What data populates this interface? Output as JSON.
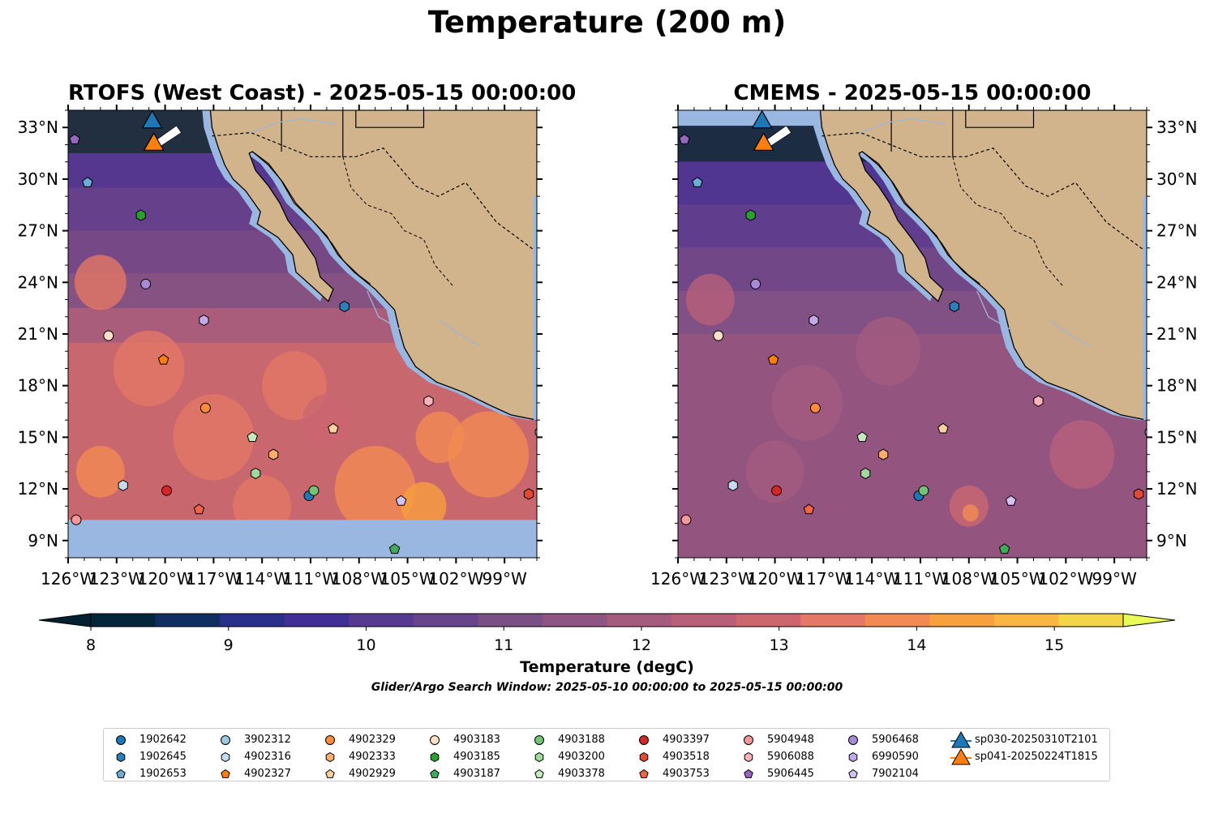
{
  "figure": {
    "title": "Temperature (200 m)",
    "colorbar_label": "Temperature (degC)",
    "search_window": "Glider/Argo Search Window: 2025-05-10 00:00:00 to 2025-05-15 00:00:00"
  },
  "panels": [
    {
      "title": "RTOFS (West Coast) - 2025-05-15 00:00:00"
    },
    {
      "title": "CMEMS - 2025-05-15 00:00:00"
    }
  ],
  "axes": {
    "lon_range": [
      -126,
      -97
    ],
    "lat_range": [
      8,
      34
    ],
    "lon_ticks": [
      "126°W",
      "123°W",
      "120°W",
      "117°W",
      "114°W",
      "111°W",
      "108°W",
      "105°W",
      "102°W",
      "99°W"
    ],
    "lat_ticks": [
      "33°N",
      "30°N",
      "27°N",
      "24°N",
      "21°N",
      "18°N",
      "15°N",
      "12°N",
      "9°N"
    ]
  },
  "colorbar": {
    "min": 8,
    "max": 15.5,
    "step": 0.5,
    "tick_labels": [
      "8",
      "9",
      "10",
      "11",
      "12",
      "13",
      "14",
      "15"
    ],
    "colors": [
      "#03263a",
      "#0f2f64",
      "#28308a",
      "#412f95",
      "#553a90",
      "#67448b",
      "#7a4f86",
      "#8f5481",
      "#a55b7e",
      "#b86079",
      "#cc6770",
      "#e47765",
      "#f28b53",
      "#f89f3f",
      "#f9b742",
      "#f3d548"
    ],
    "under_color": "#02202f",
    "over_color": "#e8fb58"
  },
  "map_colors": {
    "land": "#d2b48c",
    "no_data": "#99b7e1",
    "rtofs_base": "#c9676f",
    "cmems_base": "#a55a7c"
  },
  "floats": [
    {
      "id": "1902642",
      "shape": "circle",
      "color": "#1f77b4",
      "lon": -111.1,
      "lat": 11.6
    },
    {
      "id": "1902645",
      "shape": "hexagon",
      "color": "#2c7fb8",
      "lon": -108.9,
      "lat": 22.6
    },
    {
      "id": "1902653",
      "shape": "pentagon",
      "color": "#6baed6",
      "lon": -124.8,
      "lat": 29.8
    },
    {
      "id": "3902312",
      "shape": "circle",
      "color": "#9ecae1",
      "lon": -96.8,
      "lat": 15.3
    },
    {
      "id": "4902316",
      "shape": "hexagon",
      "color": "#c6dbef",
      "lon": -122.6,
      "lat": 12.2
    },
    {
      "id": "4902327",
      "shape": "pentagon",
      "color": "#ff7f0e",
      "lon": -120.1,
      "lat": 19.5
    },
    {
      "id": "4902329",
      "shape": "circle",
      "color": "#fd8d3c",
      "lon": -117.5,
      "lat": 16.7
    },
    {
      "id": "4902333",
      "shape": "hexagon",
      "color": "#fdae6b",
      "lon": -113.3,
      "lat": 14.0
    },
    {
      "id": "4902929",
      "shape": "pentagon",
      "color": "#fdd0a2",
      "lon": -109.6,
      "lat": 15.5
    },
    {
      "id": "4903183",
      "shape": "circle",
      "color": "#fee0c8",
      "lon": -123.5,
      "lat": 20.9
    },
    {
      "id": "4903185",
      "shape": "hexagon",
      "color": "#2ca02c",
      "lon": -121.5,
      "lat": 27.9
    },
    {
      "id": "4903187",
      "shape": "pentagon",
      "color": "#41ab5d",
      "lon": -105.8,
      "lat": 8.5
    },
    {
      "id": "4903188",
      "shape": "circle",
      "color": "#74c476",
      "lon": -110.8,
      "lat": 11.9
    },
    {
      "id": "4903200",
      "shape": "hexagon",
      "color": "#a1d99b",
      "lon": -114.4,
      "lat": 12.9
    },
    {
      "id": "4903378",
      "shape": "pentagon",
      "color": "#c7e9c0",
      "lon": -114.6,
      "lat": 15.0
    },
    {
      "id": "4903397",
      "shape": "circle",
      "color": "#d62728",
      "lon": -119.9,
      "lat": 11.9
    },
    {
      "id": "4903518",
      "shape": "hexagon",
      "color": "#e34a33",
      "lon": -97.5,
      "lat": 11.7
    },
    {
      "id": "4903753",
      "shape": "pentagon",
      "color": "#ef6548",
      "lon": -117.9,
      "lat": 10.8
    },
    {
      "id": "5904948",
      "shape": "circle",
      "color": "#f4989a",
      "lon": -125.5,
      "lat": 10.2
    },
    {
      "id": "5906088",
      "shape": "hexagon",
      "color": "#fbb4b9",
      "lon": -103.7,
      "lat": 17.1
    },
    {
      "id": "5906445",
      "shape": "pentagon",
      "color": "#9467bd",
      "lon": -125.6,
      "lat": 32.3
    },
    {
      "id": "5906468",
      "shape": "circle",
      "color": "#a68ad9",
      "lon": -121.2,
      "lat": 23.9
    },
    {
      "id": "6990590",
      "shape": "hexagon",
      "color": "#c3a9e8",
      "lon": -117.6,
      "lat": 21.8
    },
    {
      "id": "7902104",
      "shape": "pentagon",
      "color": "#d4c2f5",
      "lon": -105.4,
      "lat": 11.3
    }
  ],
  "gliders": [
    {
      "id": "sp030-20250310T2101",
      "color": "#1f77b4",
      "lon": -120.8,
      "lat": 33.4
    },
    {
      "id": "sp041-20250224T1815",
      "color": "#ff7f0e",
      "lon": -120.7,
      "lat": 32.1
    }
  ]
}
